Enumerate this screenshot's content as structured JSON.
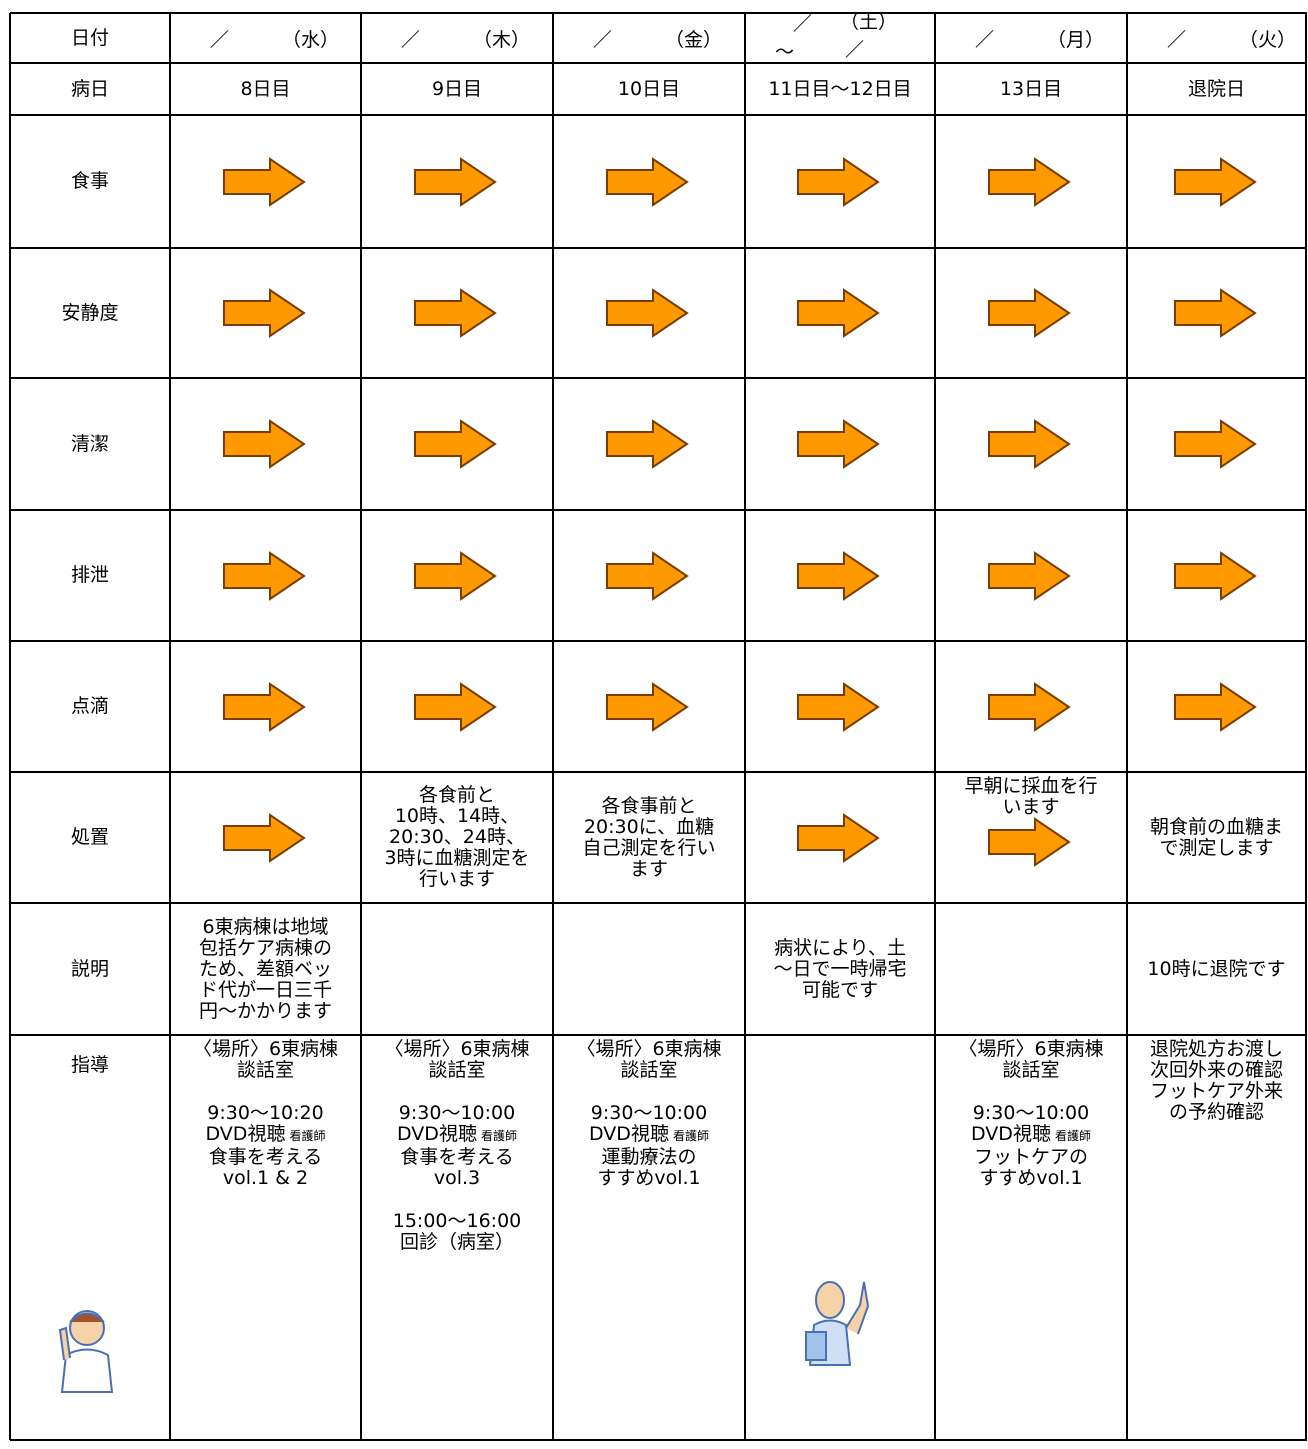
{
  "table": {
    "header": {
      "label": "日付",
      "days": [
        {
          "slash": "／",
          "day": "（水）"
        },
        {
          "slash": "／",
          "day": "（木）"
        },
        {
          "slash": "／",
          "day": "（金）"
        },
        {
          "slash": "／",
          "day": "（土）",
          "tilde": "～",
          "slash2": "／"
        },
        {
          "slash": "／",
          "day": "（月）"
        },
        {
          "slash": "／",
          "day": "（火）"
        }
      ]
    },
    "rows": [
      {
        "label": "病日",
        "cells": [
          "8日目",
          "9日目",
          "10日目",
          "11日目～12日目",
          "13日目",
          "退院日"
        ]
      },
      {
        "label": "食事"
      },
      {
        "label": "安静度"
      },
      {
        "label": "清潔"
      },
      {
        "label": "排泄"
      },
      {
        "label": "点滴"
      },
      {
        "label": "処置",
        "cells": [
          null,
          [
            "各食前と",
            "10時、14時、",
            "20:30、24時、",
            "3時に血糖測定を",
            "行います"
          ],
          [
            "各食事前と",
            "20:30に、血糖",
            "自己測定を行い",
            "ます"
          ],
          null,
          [
            "早朝に採血を行",
            "います"
          ],
          [
            "朝食前の血糖ま",
            "で測定します"
          ]
        ]
      },
      {
        "label": "説明",
        "cells": [
          [
            "6東病棟は地域",
            "包括ケア病棟の",
            "ため、差額ベッ",
            "ド代が一日三千",
            "円～かかります"
          ],
          null,
          null,
          [
            "病状により、土",
            "～日で一時帰宅",
            "可能です"
          ],
          null,
          "10時に退院です"
        ]
      },
      {
        "label": "指導",
        "cells": [
          {
            "blocks": [
              [
                "〈場所〉6東病棟",
                "談話室"
              ],
              [
                "9:30～10:20",
                {
                  "main": "DVD視聴",
                  "small": "看護師"
                },
                "食事を考える",
                "vol.1 & 2"
              ]
            ]
          },
          {
            "blocks": [
              [
                "〈場所〉6東病棟",
                "談話室"
              ],
              [
                "9:30～10:00",
                {
                  "main": "DVD視聴",
                  "small": "看護師"
                },
                "食事を考える",
                "vol.3"
              ],
              [
                "15:00～16:00",
                "回診（病室）"
              ]
            ]
          },
          {
            "blocks": [
              [
                "〈場所〉6東病棟",
                "談話室"
              ],
              [
                "9:30～10:00",
                {
                  "main": "DVD視聴",
                  "small": "看護師"
                },
                "運動療法の",
                "すすめvol.1"
              ]
            ]
          },
          null,
          {
            "blocks": [
              [
                "〈場所〉6東病棟",
                "談話室"
              ],
              [
                "9:30～10:00",
                {
                  "main": "DVD視聴",
                  "small": "看護師"
                },
                "フットケアの",
                "すすめvol.1"
              ]
            ]
          },
          {
            "blocks": [
              [
                "退院処方お渡し",
                "次回外来の確認",
                "フットケア外来",
                "の予約確認"
              ]
            ]
          }
        ]
      }
    ]
  }
}
